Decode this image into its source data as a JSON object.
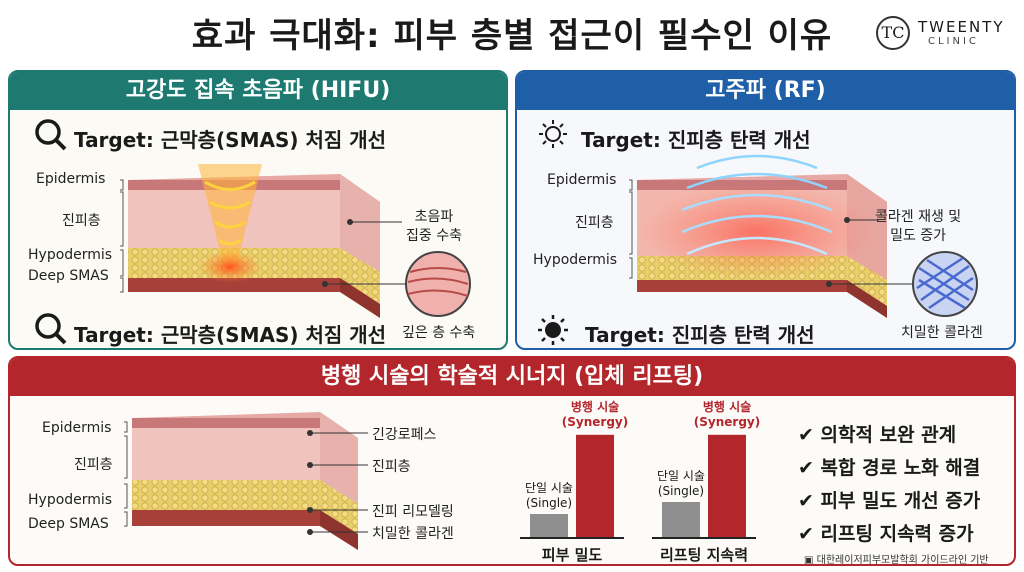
{
  "title": "효과 극대화: 피부 층별 접근이 필수인 이유",
  "logo": {
    "mark": "TC",
    "line1": "TWEENTY",
    "line2": "CLINIC"
  },
  "hifu": {
    "header": "고강도 집속 초음파 (HIFU)",
    "target_top": "Target: 근막층(SMAS) 처짐 개선",
    "target_bottom": "Target: 근막층(SMAS) 처짐 개선",
    "layers": [
      "Epidermis",
      "진피층",
      "Hypodermis",
      "Deep SMAS"
    ],
    "callout": "초음파\n집중 수축",
    "inset_label": "깊은 층 수축"
  },
  "rf": {
    "header": "고주파 (RF)",
    "target_top": "Target: 진피층 탄력 개선",
    "target_bottom": "Target: 진피층 탄력 개선",
    "layers": [
      "Epidermis",
      "진피층",
      "Hypodermis"
    ],
    "callout": "콜라겐 재생 및\n밀도 증가",
    "inset_label": "치밀한 콜라겐"
  },
  "synergy": {
    "header": "병행 시술의 학술적 시너지 (입체 리프팅)",
    "layers_left": [
      "Epidermis",
      "진피층",
      "Hypodermis",
      "Deep SMAS"
    ],
    "layers_right": [
      "긴강로페스",
      "진피층",
      "진피 리모델링",
      "치밀한 콜라겐"
    ],
    "checks": [
      "의학적 보완 관계",
      "복합 경로 노화 해결",
      "피부 밀도 개선 증가",
      "리프팅 지속력 증가"
    ],
    "footnote": "대한레이저피부모발학회 가이드라인 기반"
  },
  "chart_data": {
    "type": "bar",
    "categories": [
      "피부 밀도",
      "리프팅 지속력"
    ],
    "series": [
      {
        "name": "단일 시술\n(Single)",
        "values": [
          1,
          1.5
        ],
        "color": "#8f8f8f"
      },
      {
        "name": "병행 시술\n(Synergy)",
        "values": [
          4.3,
          4.3
        ],
        "color": "#b3262c"
      }
    ],
    "single_label": "단일 시술\n(Single)",
    "synergy_label": "병행 시술\n(Synergy)",
    "ylim": [
      0,
      5
    ]
  },
  "colors": {
    "hifu": "#1e7a70",
    "rf": "#1f5fa8",
    "synergy": "#b3262c"
  }
}
